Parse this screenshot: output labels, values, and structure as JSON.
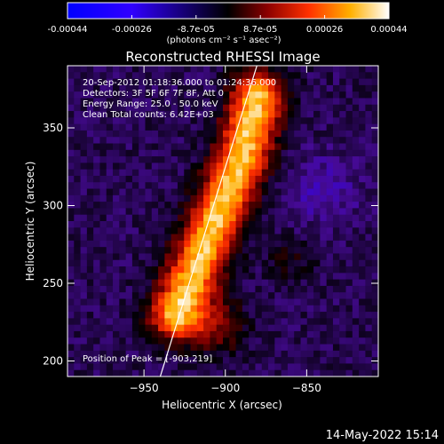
{
  "colorbar": {
    "tick_labels": [
      "-0.00044",
      "-0.00026",
      "-8.7e-05",
      "8.7e-05",
      "0.00026",
      "0.00044"
    ],
    "units": "(photons cm⁻² s⁻¹ asec⁻²)"
  },
  "chart_data": {
    "type": "heatmap",
    "title": "Reconstructed RHESSI Image",
    "xlabel": "Heliocentric X (arcsec)",
    "ylabel": "Heliocentric Y (arcsec)",
    "xlim": [
      -997,
      -806
    ],
    "ylim": [
      190,
      390
    ],
    "x_ticks": [
      -950,
      -900,
      -850
    ],
    "y_ticks": [
      200,
      250,
      300,
      350
    ],
    "x_tick_labels": [
      "−950",
      "−900",
      "−850"
    ],
    "y_tick_labels": [
      "200",
      "250",
      "300",
      "350"
    ],
    "colorbar_range": [
      -0.00044,
      0.00044
    ],
    "limb_line": [
      [
        -940,
        190
      ],
      [
        -880,
        392
      ]
    ],
    "bright_ridge": [
      [
        -930,
        230
      ],
      [
        -890,
        330
      ],
      [
        -880,
        370
      ]
    ],
    "annotations": {
      "time": "20-Sep-2012 01:18:36.000 to 01:24:36.000",
      "detectors": "Detectors: 3F 5F 6F 7F 8F, Att 0",
      "energy": "Energy Range: 25.0 - 50.0 keV",
      "clean": "Clean     Total counts: 6.42E+03",
      "peak": "Position of Peak = [-903,219]"
    }
  },
  "footer": {
    "date": "14-May-2022 15:14"
  }
}
